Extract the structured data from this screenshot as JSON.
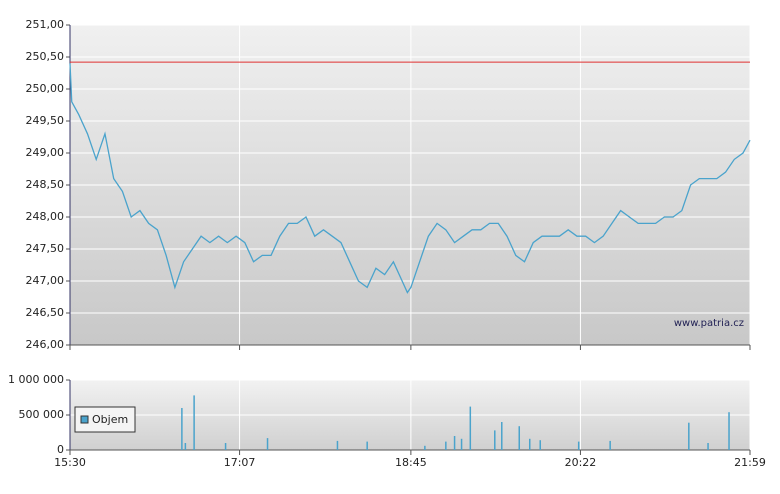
{
  "chart_data": [
    {
      "type": "line",
      "color": "#4aa3cc",
      "x": [
        "15:30",
        "15:31",
        "15:35",
        "15:40",
        "15:45",
        "15:50",
        "15:55",
        "16:00",
        "16:05",
        "16:10",
        "16:15",
        "16:20",
        "16:25",
        "16:30",
        "16:35",
        "16:40",
        "16:45",
        "16:50",
        "16:55",
        "17:00",
        "17:05",
        "17:10",
        "17:15",
        "17:20",
        "17:25",
        "17:30",
        "17:35",
        "17:40",
        "17:45",
        "17:50",
        "17:55",
        "18:00",
        "18:05",
        "18:10",
        "18:15",
        "18:20",
        "18:25",
        "18:30",
        "18:35",
        "18:40",
        "18:43",
        "18:45",
        "18:50",
        "18:55",
        "19:00",
        "19:05",
        "19:10",
        "19:15",
        "19:20",
        "19:25",
        "19:30",
        "19:35",
        "19:40",
        "19:45",
        "19:50",
        "19:55",
        "20:00",
        "20:05",
        "20:10",
        "20:15",
        "20:20",
        "20:25",
        "20:30",
        "20:35",
        "20:40",
        "20:45",
        "20:50",
        "20:55",
        "21:00",
        "21:05",
        "21:10",
        "21:15",
        "21:20",
        "21:25",
        "21:30",
        "21:35",
        "21:40",
        "21:45",
        "21:50",
        "21:55",
        "21:59"
      ],
      "values": [
        250.4,
        249.8,
        249.6,
        249.3,
        248.9,
        249.3,
        248.6,
        248.4,
        248.0,
        248.1,
        247.9,
        247.8,
        247.4,
        246.9,
        247.3,
        247.5,
        247.7,
        247.6,
        247.7,
        247.6,
        247.7,
        247.6,
        247.3,
        247.4,
        247.4,
        247.7,
        247.9,
        247.9,
        248.0,
        247.7,
        247.8,
        247.7,
        247.6,
        247.3,
        247.0,
        246.9,
        247.2,
        247.1,
        247.3,
        247.0,
        246.82,
        246.9,
        247.3,
        247.7,
        247.9,
        247.8,
        247.6,
        247.7,
        247.8,
        247.8,
        247.9,
        247.9,
        247.7,
        247.4,
        247.3,
        247.6,
        247.7,
        247.7,
        247.7,
        247.8,
        247.7,
        247.7,
        247.6,
        247.7,
        247.9,
        248.1,
        248.0,
        247.9,
        247.9,
        247.9,
        248.0,
        248.0,
        248.1,
        248.5,
        248.6,
        248.6,
        248.6,
        248.7,
        248.9,
        249.0,
        249.2
      ],
      "xlim": [
        "15:30",
        "21:59"
      ],
      "xticks": [
        "15:30",
        "17:07",
        "18:45",
        "20:22",
        "21:59"
      ],
      "ylim": [
        246,
        251
      ],
      "yticks": [
        {
          "value": 246,
          "label": "246,00"
        },
        {
          "value": 246.5,
          "label": "246,50"
        },
        {
          "value": 247,
          "label": "247,00"
        },
        {
          "value": 247.5,
          "label": "247,50"
        },
        {
          "value": 248,
          "label": "248,00"
        },
        {
          "value": 248.5,
          "label": "248,50"
        },
        {
          "value": 249,
          "label": "249,00"
        },
        {
          "value": 249.5,
          "label": "249,50"
        },
        {
          "value": 250,
          "label": "250,00"
        },
        {
          "value": 250.5,
          "label": "250,50"
        },
        {
          "value": 251,
          "label": "251,00"
        }
      ],
      "reference_line": {
        "value": 250.42,
        "color": "#e03030"
      },
      "grid": true,
      "annotation": "www.patria.cz"
    },
    {
      "type": "bar",
      "x": [
        "16:34",
        "16:36",
        "16:41",
        "16:59",
        "17:23",
        "18:03",
        "18:20",
        "18:53",
        "19:05",
        "19:10",
        "19:14",
        "19:19",
        "19:33",
        "19:37",
        "19:47",
        "19:53",
        "19:59",
        "20:21",
        "20:39",
        "21:24",
        "21:35",
        "21:47"
      ],
      "series": [
        {
          "name": "Objem",
          "color": "#4aa3cc",
          "values": [
            600000,
            100000,
            780000,
            100000,
            170000,
            130000,
            120000,
            60000,
            120000,
            200000,
            160000,
            620000,
            280000,
            400000,
            340000,
            160000,
            140000,
            120000,
            130000,
            390000,
            100000,
            540000
          ]
        }
      ],
      "xlim": [
        "15:30",
        "21:59"
      ],
      "xticks": [
        "15:30",
        "17:07",
        "18:45",
        "20:22",
        "21:59"
      ],
      "ylim": [
        0,
        1000000
      ],
      "yticks": [
        0,
        {
          "value": 500000,
          "label": "500 000"
        },
        {
          "value": 1000000,
          "label": "1 000 000"
        }
      ],
      "grid": true,
      "legend": "upper-left"
    }
  ]
}
